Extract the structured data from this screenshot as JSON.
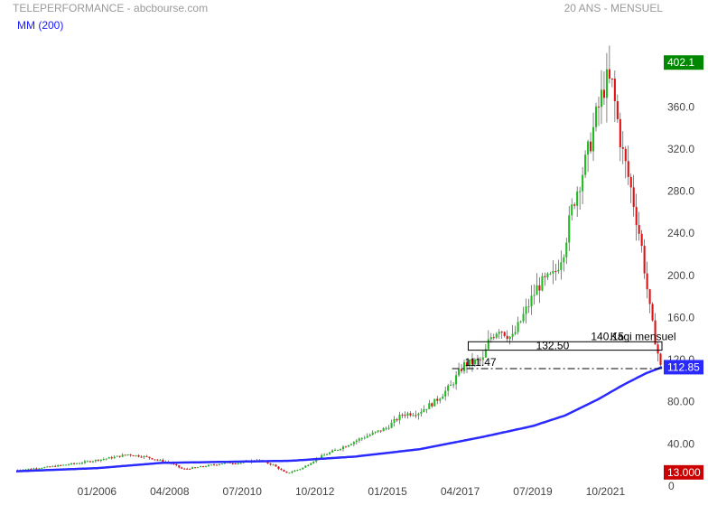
{
  "header": {
    "title": "TELEPERFORMANCE - abcbourse.com",
    "period": "20 ANS - MENSUEL",
    "ma_legend": "MM (200)"
  },
  "chart_data": {
    "type": "candlestick",
    "ylim": [
      0,
      410
    ],
    "y_ticks": [
      "40.00",
      "80.00",
      "120.0",
      "160.0",
      "200.0",
      "240.0",
      "280.0",
      "320.0",
      "360.0"
    ],
    "y_tick_values": [
      40,
      80,
      120,
      160,
      200,
      240,
      280,
      320,
      360
    ],
    "x_ticks": [
      "01/2006",
      "04/2008",
      "07/2010",
      "10/2012",
      "01/2015",
      "04/2017",
      "07/2019",
      "10/2021"
    ],
    "x_tick_years": [
      2006.0,
      2008.25,
      2010.5,
      2012.75,
      2015.0,
      2017.25,
      2019.5,
      2021.75
    ],
    "x_range": [
      2003.5,
      2023.5
    ],
    "price_anchors": [
      [
        2003.5,
        15
      ],
      [
        2004.5,
        18
      ],
      [
        2005.5,
        22
      ],
      [
        2006.5,
        27
      ],
      [
        2007.0,
        30
      ],
      [
        2007.5,
        28
      ],
      [
        2008.3,
        22
      ],
      [
        2008.7,
        16
      ],
      [
        2009.2,
        18
      ],
      [
        2010.0,
        22
      ],
      [
        2010.5,
        22
      ],
      [
        2011.0,
        25
      ],
      [
        2011.5,
        20
      ],
      [
        2011.9,
        12
      ],
      [
        2012.4,
        17
      ],
      [
        2012.9,
        27
      ],
      [
        2013.5,
        35
      ],
      [
        2014.2,
        45
      ],
      [
        2015.0,
        55
      ],
      [
        2015.5,
        68
      ],
      [
        2016.0,
        70
      ],
      [
        2016.5,
        80
      ],
      [
        2017.0,
        95
      ],
      [
        2017.4,
        115
      ],
      [
        2018.0,
        120
      ],
      [
        2018.2,
        140
      ],
      [
        2018.5,
        150
      ],
      [
        2018.9,
        140
      ],
      [
        2019.3,
        165
      ],
      [
        2019.7,
        190
      ],
      [
        2020.2,
        200
      ],
      [
        2020.5,
        225
      ],
      [
        2020.8,
        270
      ],
      [
        2021.2,
        310
      ],
      [
        2021.5,
        350
      ],
      [
        2021.8,
        385
      ],
      [
        2022.0,
        380
      ],
      [
        2022.3,
        320
      ],
      [
        2022.6,
        280
      ],
      [
        2022.9,
        230
      ],
      [
        2023.2,
        160
      ],
      [
        2023.5,
        113
      ]
    ],
    "ma_anchors": [
      [
        2003.5,
        14
      ],
      [
        2006.0,
        17
      ],
      [
        2008.0,
        22
      ],
      [
        2010.0,
        23
      ],
      [
        2012.0,
        24
      ],
      [
        2014.0,
        28
      ],
      [
        2016.0,
        35
      ],
      [
        2018.0,
        47
      ],
      [
        2019.5,
        57
      ],
      [
        2020.5,
        67
      ],
      [
        2021.5,
        82
      ],
      [
        2022.3,
        96
      ],
      [
        2023.0,
        107
      ],
      [
        2023.5,
        112.85
      ]
    ],
    "last_price_label": "402.1",
    "last_price_value": 402.1,
    "ma_value_label": "112.85",
    "ma_value": 112.85,
    "low_label": "13.000",
    "low_value": 13,
    "zero_label": "0",
    "kagi_label": "Kagi mensuel",
    "kagi_box": {
      "x_start": 2017.5,
      "x_end": 2023.5,
      "y_top": 137,
      "y_bottom": 129
    },
    "kagi_box_label": "132.50",
    "kagi_level_label": "140.15",
    "support_label": "111.47",
    "support_value": 111.47,
    "support_x_start": 2017.0,
    "colors": {
      "up": "#22bb22",
      "down": "#dd1111",
      "ma": "#2a2aff",
      "price_badge": "#008800",
      "ma_badge": "#2a2aff",
      "low_badge": "#cc0000",
      "tick_text": "#444444"
    }
  }
}
